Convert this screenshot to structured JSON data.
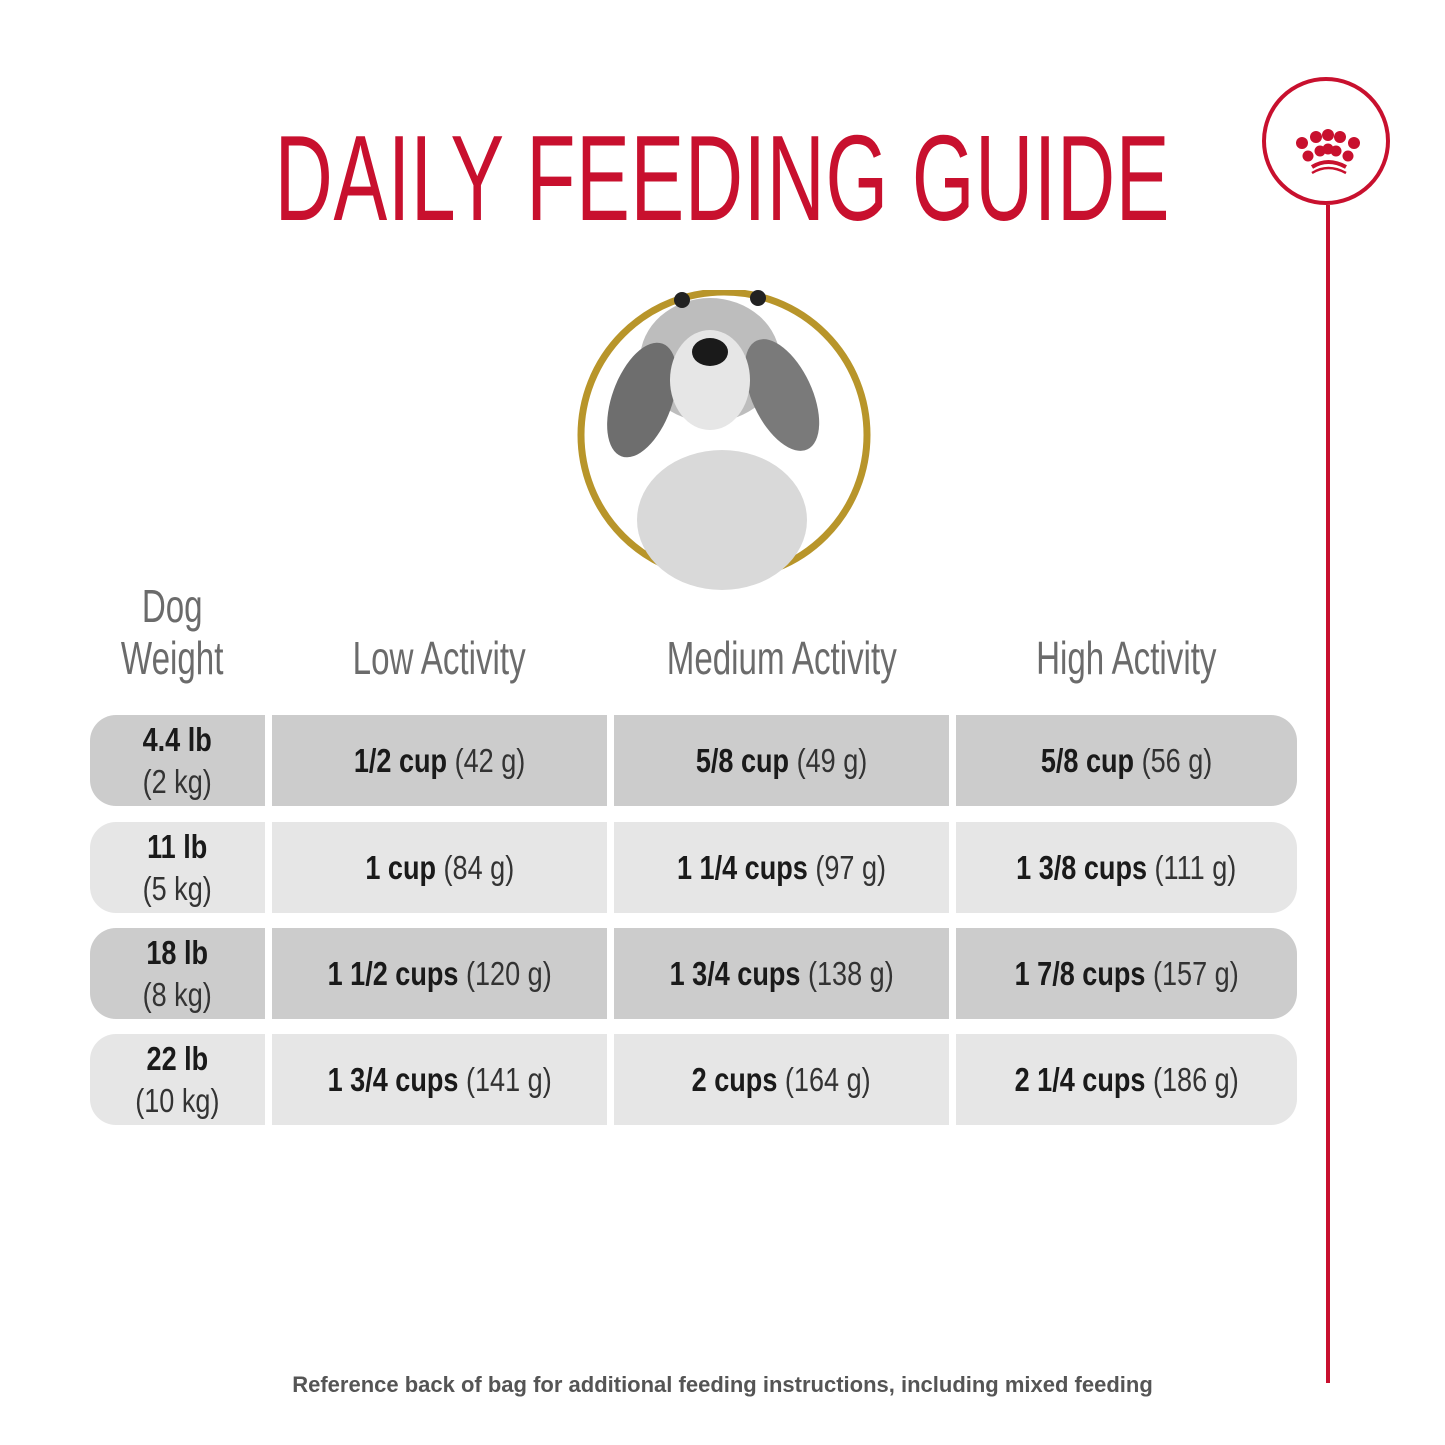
{
  "title": "DAILY FEEDING GUIDE",
  "brand_color": "#c8102e",
  "logo": {
    "icon": "crown-icon"
  },
  "image": {
    "subject": "dog-portrait",
    "ring_color": "#b8952a"
  },
  "table": {
    "headers": [
      "Dog Weight",
      "Low Activity",
      "Medium Activity",
      "High Activity"
    ],
    "header_weight_lines": [
      "Dog",
      "Weight"
    ],
    "rows": [
      {
        "weight_lb": "4.4 lb",
        "weight_kg": "(2 kg)",
        "cells": [
          {
            "cups": "1/2 cup",
            "grams": "(42 g)"
          },
          {
            "cups": "5/8 cup",
            "grams": "(49 g)"
          },
          {
            "cups": "5/8 cup",
            "grams": "(56 g)"
          }
        ]
      },
      {
        "weight_lb": "11 lb",
        "weight_kg": "(5 kg)",
        "cells": [
          {
            "cups": "1 cup",
            "grams": "(84 g)"
          },
          {
            "cups": "1 1/4 cups",
            "grams": "(97 g)"
          },
          {
            "cups": "1 3/8 cups",
            "grams": "(111 g)"
          }
        ]
      },
      {
        "weight_lb": "18 lb",
        "weight_kg": "(8 kg)",
        "cells": [
          {
            "cups": "1 1/2 cups",
            "grams": "(120 g)"
          },
          {
            "cups": "1 3/4 cups",
            "grams": "(138 g)"
          },
          {
            "cups": "1 7/8 cups",
            "grams": "(157 g)"
          }
        ]
      },
      {
        "weight_lb": "22 lb",
        "weight_kg": "(10 kg)",
        "cells": [
          {
            "cups": "1 3/4 cups",
            "grams": "(141 g)"
          },
          {
            "cups": "2 cups",
            "grams": "(164 g)"
          },
          {
            "cups": "2 1/4 cups",
            "grams": "(186 g)"
          }
        ]
      }
    ]
  },
  "footer": "Reference back of bag for additional feeding instructions, including mixed feeding"
}
